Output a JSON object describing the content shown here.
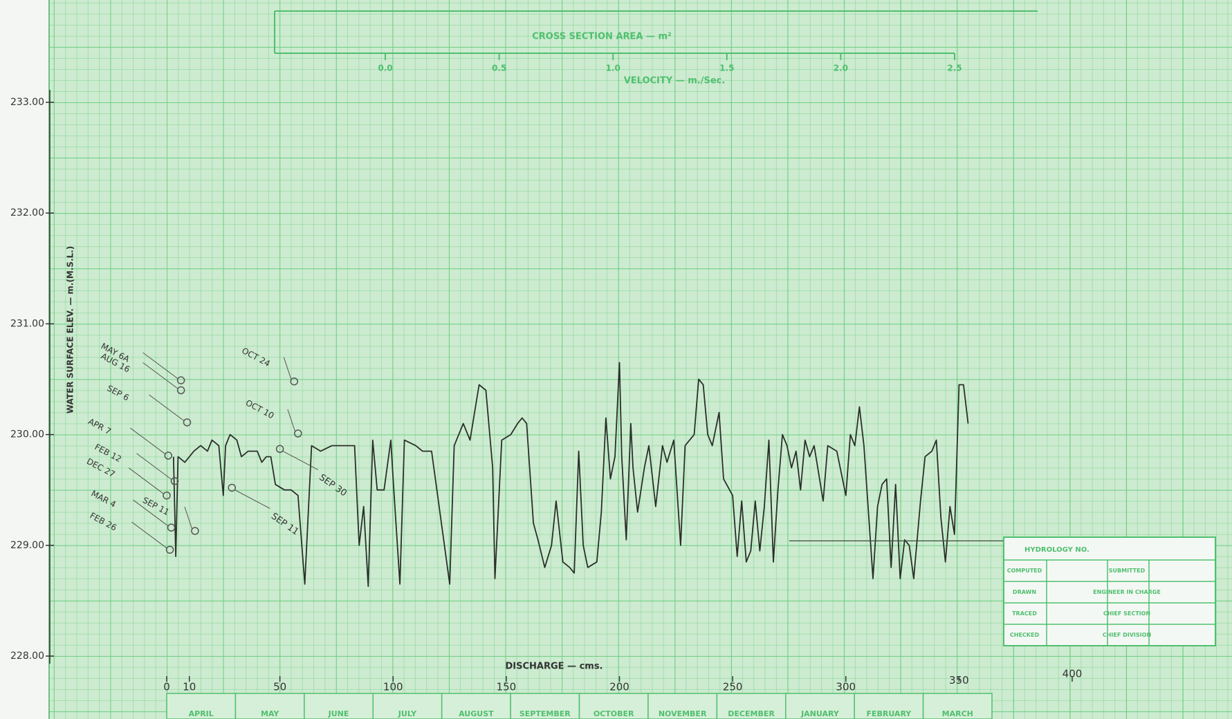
{
  "chart_data": {
    "type": "line",
    "title": "CROSS SECTION AREA — m²",
    "x2_label": "VELOCITY — m./Sec.",
    "x_label": "DISCHARGE — cms.",
    "y_label": "WATER SURFACE ELEV. — m.(M.S.L.)",
    "xlim": [
      0,
      400
    ],
    "xticks": [
      0,
      10,
      50,
      100,
      150,
      200,
      250,
      300,
      350,
      400
    ],
    "ylim": [
      228,
      233
    ],
    "yticks": [
      {
        "value": 228,
        "label": "228.00"
      },
      {
        "value": 229,
        "label": "229.00"
      },
      {
        "value": 230,
        "label": "230.00"
      },
      {
        "value": 231,
        "label": "231.00"
      },
      {
        "value": 232,
        "label": "232.00"
      },
      {
        "value": 233,
        "label": "233.00"
      }
    ],
    "x2lim": [
      0,
      2.5
    ],
    "x2ticks": [
      {
        "value": 0,
        "label": "0.0"
      },
      0.5,
      {
        "value": 1,
        "label": "1.0"
      },
      1.5,
      {
        "value": 2,
        "label": "2.0"
      },
      2.5
    ],
    "months": [
      "APRIL",
      "MAY",
      "JUNE",
      "JULY",
      "AUGUST",
      "SEPTEMBER",
      "OCTOBER",
      "NOVEMBER",
      "DECEMBER",
      "JANUARY",
      "FEBRUARY",
      "MARCH"
    ],
    "series": [
      {
        "color": "#2a2f2a",
        "x": [
          3,
          4,
          5,
          8,
          12,
          15,
          18,
          20,
          23,
          25,
          26,
          28,
          31,
          33,
          36,
          40,
          42,
          44,
          46,
          48,
          52,
          55,
          58,
          61,
          64,
          68,
          73,
          80,
          83,
          85,
          87,
          89,
          91,
          93,
          96,
          99,
          100,
          103,
          105,
          110,
          113,
          117,
          125,
          127,
          131,
          134,
          138,
          141,
          144,
          145,
          148,
          152,
          155,
          157,
          159,
          162,
          164,
          167,
          170,
          172,
          175,
          178,
          180,
          182,
          184,
          186,
          190,
          192,
          194,
          196,
          198,
          200,
          201,
          203,
          205,
          206,
          208,
          211,
          213,
          216,
          219,
          221,
          224,
          227,
          229,
          233,
          235,
          237,
          239,
          241,
          244,
          246,
          250,
          252,
          254,
          256,
          258,
          260,
          262,
          264,
          266,
          268,
          270,
          272,
          274,
          276,
          278,
          280,
          282,
          284,
          286,
          290,
          292,
          296,
          300,
          302,
          304,
          306,
          308,
          312,
          314,
          316,
          318,
          320,
          322,
          324,
          326,
          328,
          330,
          333,
          335,
          338,
          340,
          342,
          344,
          346,
          348,
          350,
          352,
          354
        ],
        "values": [
          229.8,
          228.9,
          229.8,
          229.75,
          229.85,
          229.9,
          229.85,
          229.95,
          229.9,
          229.45,
          229.9,
          230.0,
          229.95,
          229.8,
          229.85,
          229.85,
          229.75,
          229.8,
          229.8,
          229.55,
          229.5,
          229.5,
          229.45,
          228.65,
          229.9,
          229.85,
          229.9,
          229.9,
          229.9,
          229.0,
          229.35,
          228.63,
          229.95,
          229.5,
          229.5,
          229.95,
          229.6,
          228.65,
          229.95,
          229.9,
          229.85,
          229.85,
          228.65,
          229.9,
          230.1,
          229.95,
          230.45,
          230.4,
          229.7,
          228.7,
          229.95,
          230.0,
          230.1,
          230.15,
          230.1,
          229.2,
          229.05,
          228.8,
          229.0,
          229.4,
          228.85,
          228.8,
          228.75,
          229.85,
          229.0,
          228.8,
          228.85,
          229.3,
          230.15,
          229.6,
          229.8,
          230.65,
          229.8,
          229.05,
          230.1,
          229.7,
          229.3,
          229.7,
          229.9,
          229.35,
          229.9,
          229.75,
          229.95,
          229.0,
          229.9,
          230.0,
          230.5,
          230.45,
          230.0,
          229.9,
          230.2,
          229.6,
          229.45,
          228.9,
          229.4,
          228.85,
          228.95,
          229.4,
          228.95,
          229.35,
          229.95,
          228.85,
          229.5,
          230.0,
          229.9,
          229.7,
          229.85,
          229.5,
          229.95,
          229.8,
          229.9,
          229.4,
          229.9,
          229.85,
          229.45,
          230.0,
          229.9,
          230.25,
          229.9,
          228.7,
          229.35,
          229.55,
          229.6,
          228.8,
          229.55,
          228.7,
          229.05,
          229.0,
          228.7,
          229.4,
          229.8,
          229.85,
          229.95,
          229.25,
          228.85,
          229.35,
          229.1,
          230.45,
          230.45,
          230.1
        ]
      },
      {
        "color": "#3a4a3a",
        "x": [
          275,
          375
        ],
        "values": [
          229.04,
          229.04
        ]
      }
    ],
    "annotations": [
      {
        "label": "MAY 6A",
        "x": 6.3,
        "y": 230.49
      },
      {
        "label": "AUG 16",
        "x": 6.3,
        "y": 230.4
      },
      {
        "label": "SEP 6",
        "x": 9,
        "y": 230.11
      },
      {
        "label": "APR 7",
        "x": 0.7,
        "y": 229.81
      },
      {
        "label": "FEB 12",
        "x": 3.5,
        "y": 229.58
      },
      {
        "label": "DEC 27",
        "x": 0,
        "y": 229.45
      },
      {
        "label": "MAR 4",
        "x": 2,
        "y": 229.16
      },
      {
        "label": "FEB 26",
        "x": 1.4,
        "y": 228.96
      },
      {
        "label": "OCT 24",
        "x": 56.3,
        "y": 230.48
      },
      {
        "label": "OCT 10",
        "x": 58,
        "y": 230.01
      },
      {
        "label": "SEP 30",
        "x": 50,
        "y": 229.87
      },
      {
        "label": "SEP 11",
        "x": 28.8,
        "y": 229.52
      },
      {
        "label": "SEP 11",
        "x": 12.5,
        "y": 229.13
      }
    ],
    "title_block": {
      "heading": "HYDROLOGY NO.",
      "rows": [
        [
          "COMPUTED",
          "SUBMITTED"
        ],
        [
          "DRAWN",
          "ENGINEER IN CHARGE"
        ],
        [
          "TRACED",
          "CHIEF SECTION"
        ],
        [
          "CHECKED",
          "CHIEF DIVISION"
        ]
      ]
    }
  }
}
